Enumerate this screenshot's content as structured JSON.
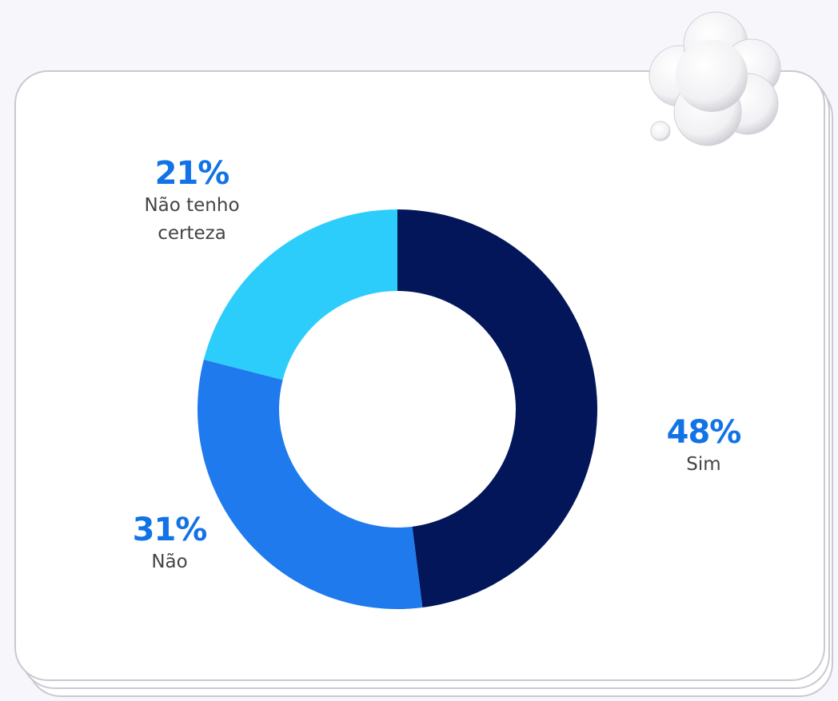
{
  "chart_data": {
    "type": "donut",
    "categories": [
      "Sim",
      "Não",
      "Não tenho certeza"
    ],
    "values": [
      48,
      31,
      21
    ],
    "value_labels": [
      "48%",
      "31%",
      "21%"
    ],
    "colors": [
      "#021659",
      "#1f7bed",
      "#2dcdfb"
    ]
  }
}
